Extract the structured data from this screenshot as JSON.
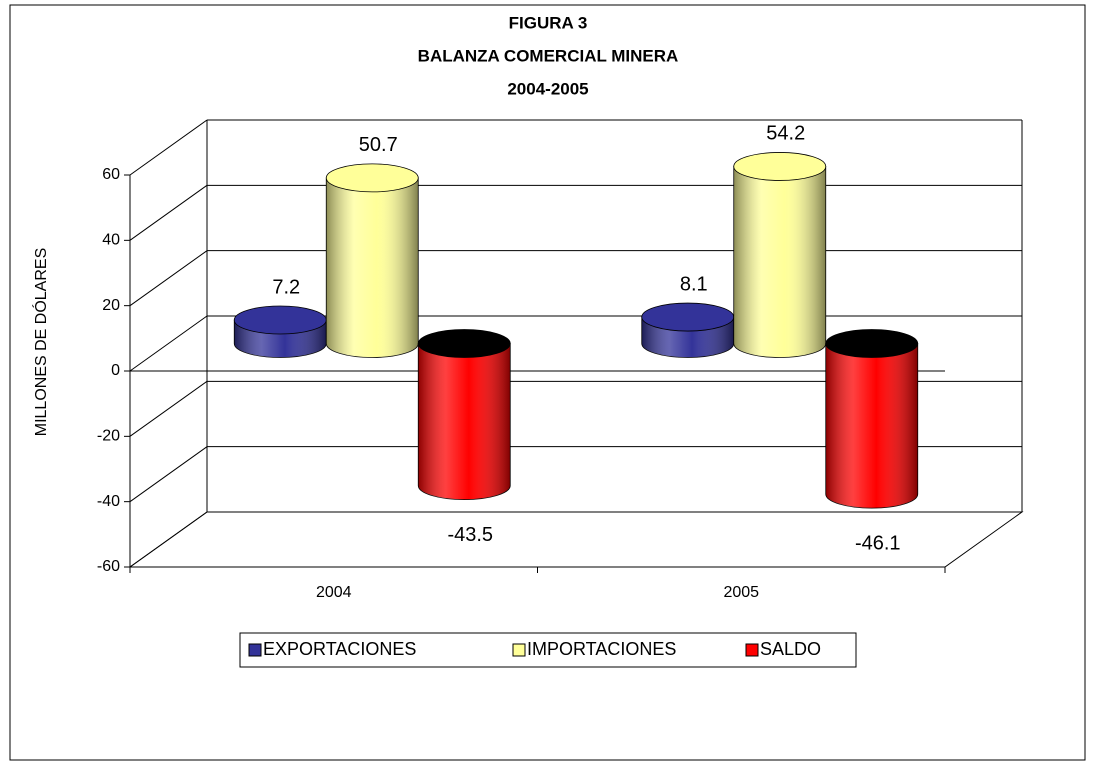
{
  "chart_data": {
    "type": "bar3d",
    "title": [
      "FIGURA 3",
      "BALANZA COMERCIAL MINERA",
      "2004-2005"
    ],
    "y_label": "MILLONES DE DÓLARES",
    "categories": [
      "2004",
      "2005"
    ],
    "series": [
      {
        "name": "EXPORTACIONES",
        "color": "#333399",
        "values": [
          7.2,
          8.1
        ]
      },
      {
        "name": "IMPORTACIONES",
        "color": "#FFFF99",
        "values": [
          50.7,
          54.2
        ]
      },
      {
        "name": "SALDO",
        "color": "#FF0000",
        "values": [
          -43.5,
          -46.1
        ]
      }
    ],
    "ylim": [
      -60,
      60
    ],
    "yticks": [
      -60,
      -40,
      -20,
      0,
      20,
      40,
      60
    ],
    "grid": true,
    "legend": "bottom"
  }
}
